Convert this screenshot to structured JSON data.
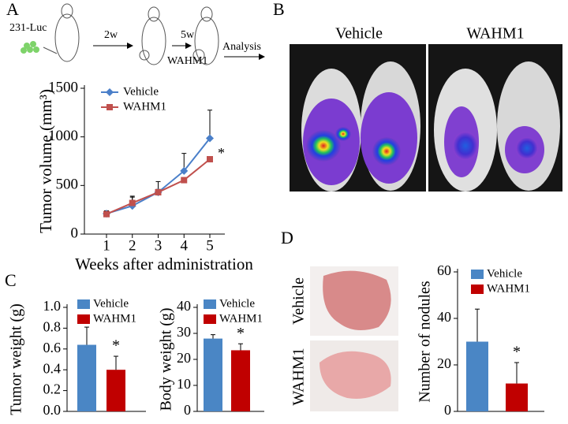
{
  "panel_labels": [
    "A",
    "B",
    "C",
    "D"
  ],
  "schematic": {
    "cells": "231-Luc",
    "step1": "2w",
    "step2": "5w",
    "drug": "WAHM1",
    "end": "Analysis"
  },
  "imaging": {
    "groups": [
      "Vehicle",
      "WAHM1"
    ]
  },
  "lung_images": {
    "groups": [
      "Vehicle",
      "WAHM1"
    ]
  },
  "chart_data": [
    {
      "type": "line",
      "ylabel": "Tumor volume (mm³)",
      "xlabel": "Weeks after administration",
      "categories": [
        "1",
        "2",
        "3",
        "4",
        "5"
      ],
      "ylim": [
        0,
        1500
      ],
      "yticks": [
        0,
        500,
        1000,
        1500
      ],
      "annotation": "*",
      "series": [
        {
          "name": "Vehicle",
          "color": "#4a7fc9",
          "marker": "diamond",
          "values": [
            210,
            290,
            430,
            650,
            985
          ],
          "errors": [
            30,
            100,
            110,
            180,
            290
          ]
        },
        {
          "name": "WAHM1",
          "color": "#c0504d",
          "marker": "square",
          "values": [
            205,
            320,
            430,
            555,
            770
          ],
          "errors": [
            20,
            60,
            30,
            20,
            20
          ]
        }
      ]
    },
    {
      "type": "bar",
      "ylabel": "Tumor weight (g)",
      "ylim": [
        0,
        1
      ],
      "yticks": [
        {
          "value": 0,
          "label": "0.0"
        },
        0.2,
        0.4,
        0.6,
        0.8,
        {
          "value": 1,
          "label": "1.0"
        }
      ],
      "annotation": "*",
      "series": [
        {
          "name": "Vehicle",
          "color": "#4a86c5",
          "values": [
            0.64
          ],
          "errors": [
            0.17
          ]
        },
        {
          "name": "WAHM1",
          "color": "#c00000",
          "values": [
            0.4
          ],
          "errors": [
            0.13
          ]
        }
      ]
    },
    {
      "type": "bar",
      "ylabel": "Body weight (g)",
      "ylim": [
        0,
        40
      ],
      "yticks": [
        0,
        10,
        20,
        30,
        40
      ],
      "annotation": "*",
      "series": [
        {
          "name": "Vehicle",
          "color": "#4a86c5",
          "values": [
            28
          ],
          "errors": [
            1.5
          ]
        },
        {
          "name": "WAHM1",
          "color": "#c00000",
          "values": [
            23.5
          ],
          "errors": [
            2.5
          ]
        }
      ]
    },
    {
      "type": "bar",
      "ylabel": "Number of nodules",
      "ylim": [
        0,
        60
      ],
      "yticks": [
        0,
        20,
        40,
        60
      ],
      "annotation": "*",
      "series": [
        {
          "name": "Vehicle",
          "color": "#4a86c5",
          "values": [
            30
          ],
          "errors": [
            14
          ]
        },
        {
          "name": "WAHM1",
          "color": "#c00000",
          "values": [
            12
          ],
          "errors": [
            9
          ]
        }
      ]
    }
  ]
}
